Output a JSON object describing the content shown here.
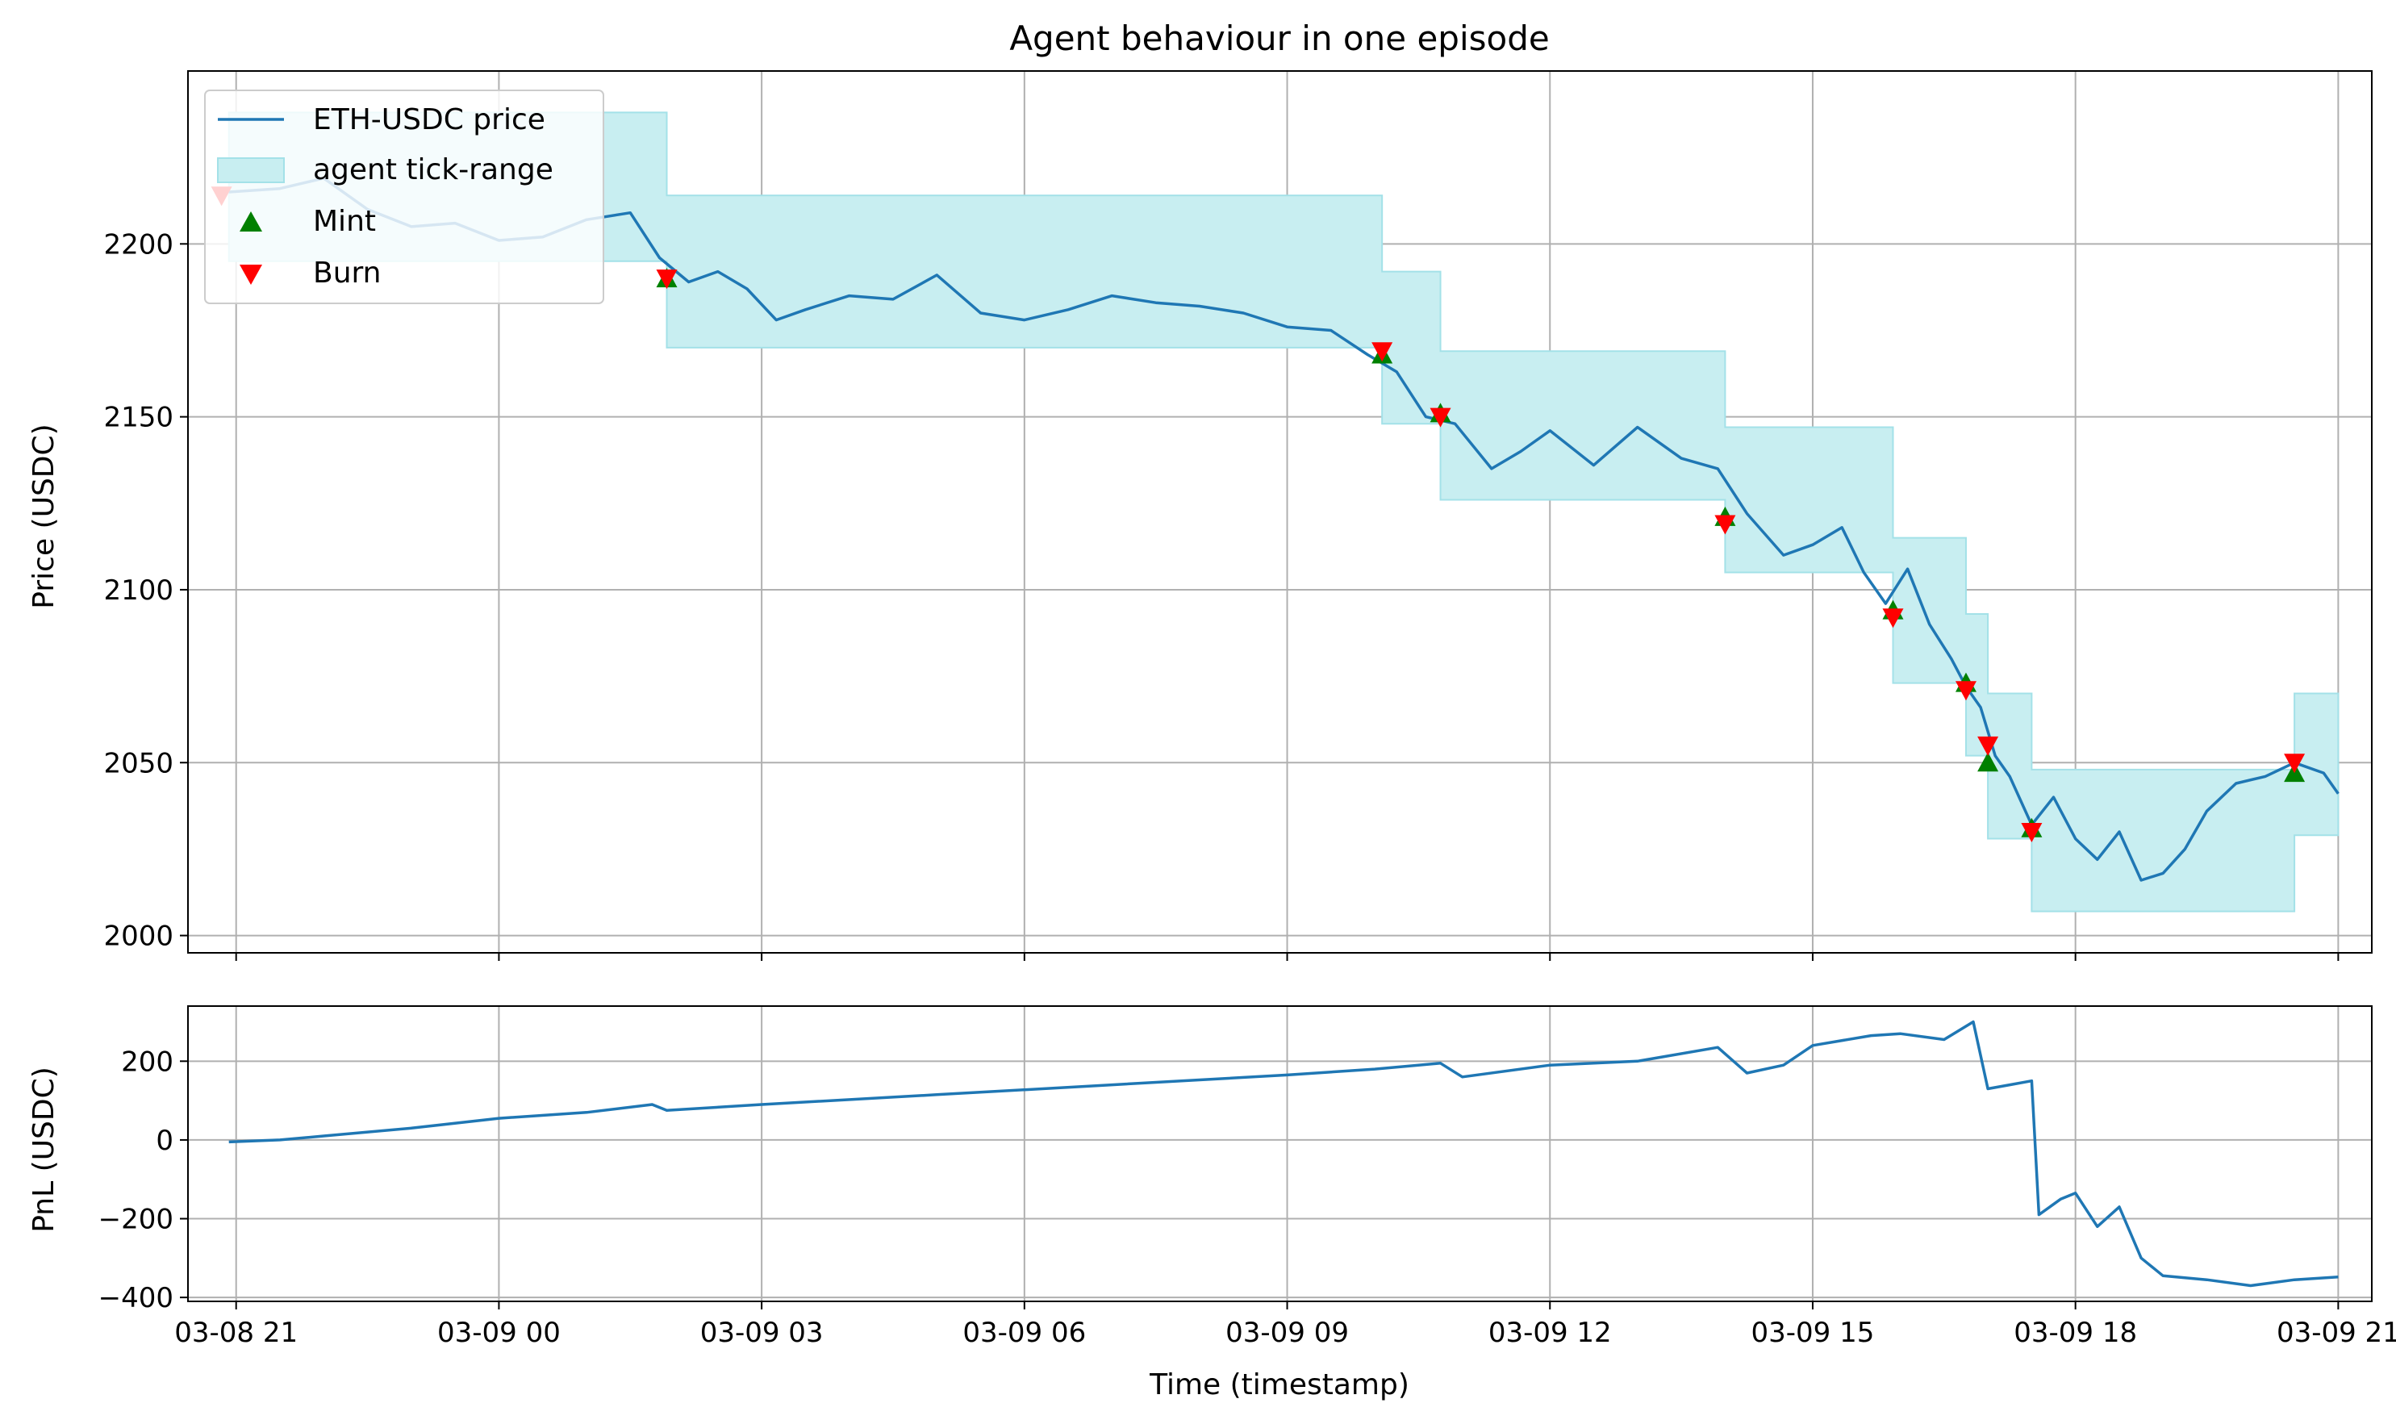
{
  "colors": {
    "price_line": "#1f77b4",
    "pnl_line": "#1f77b4",
    "tick_range_fill": "#c8eef1",
    "tick_range_edge": "#a3e1e8",
    "mint": "#008000",
    "burn": "#ff0000",
    "grid": "#b0b0b0"
  },
  "chart_data": [
    {
      "type": "line",
      "title": "Agent behaviour in one episode",
      "xlabel": "",
      "ylabel": "Price (USDC)",
      "xlim": [
        "2024-03-08 20:27",
        "2024-03-09 21:23"
      ],
      "ylim": [
        1995,
        2250
      ],
      "yticks": [
        2000,
        2050,
        2100,
        2150,
        2200
      ],
      "grid": true,
      "legend_placement": "top-left",
      "legend": [
        "ETH-USDC price",
        "agent tick-range",
        "Mint",
        "Burn"
      ],
      "series": [
        {
          "name": "ETH-USDC price",
          "x": [
            "2024-03-08 20:55",
            "2024-03-08 21:30",
            "2024-03-08 22:00",
            "2024-03-08 22:30",
            "2024-03-08 23:00",
            "2024-03-08 23:30",
            "2024-03-09 00:00",
            "2024-03-09 00:30",
            "2024-03-09 01:00",
            "2024-03-09 01:30",
            "2024-03-09 01:50",
            "2024-03-09 02:10",
            "2024-03-09 02:30",
            "2024-03-09 02:50",
            "2024-03-09 03:10",
            "2024-03-09 03:30",
            "2024-03-09 04:00",
            "2024-03-09 04:30",
            "2024-03-09 05:00",
            "2024-03-09 05:30",
            "2024-03-09 06:00",
            "2024-03-09 06:30",
            "2024-03-09 07:00",
            "2024-03-09 07:30",
            "2024-03-09 08:00",
            "2024-03-09 08:30",
            "2024-03-09 09:00",
            "2024-03-09 09:30",
            "2024-03-09 09:55",
            "2024-03-09 10:15",
            "2024-03-09 10:35",
            "2024-03-09 10:55",
            "2024-03-09 11:20",
            "2024-03-09 11:40",
            "2024-03-09 12:00",
            "2024-03-09 12:30",
            "2024-03-09 13:00",
            "2024-03-09 13:30",
            "2024-03-09 13:55",
            "2024-03-09 14:15",
            "2024-03-09 14:40",
            "2024-03-09 15:00",
            "2024-03-09 15:20",
            "2024-03-09 15:35",
            "2024-03-09 15:50",
            "2024-03-09 16:05",
            "2024-03-09 16:20",
            "2024-03-09 16:35",
            "2024-03-09 16:45",
            "2024-03-09 16:55",
            "2024-03-09 17:05",
            "2024-03-09 17:15",
            "2024-03-09 17:30",
            "2024-03-09 17:45",
            "2024-03-09 18:00",
            "2024-03-09 18:15",
            "2024-03-09 18:30",
            "2024-03-09 18:45",
            "2024-03-09 19:00",
            "2024-03-09 19:15",
            "2024-03-09 19:30",
            "2024-03-09 19:50",
            "2024-03-09 20:10",
            "2024-03-09 20:30",
            "2024-03-09 20:50",
            "2024-03-09 21:00"
          ],
          "values": [
            2215,
            2216,
            2219,
            2210,
            2205,
            2206,
            2201,
            2202,
            2207,
            2209,
            2196,
            2189,
            2192,
            2187,
            2178,
            2181,
            2185,
            2184,
            2191,
            2180,
            2178,
            2181,
            2185,
            2183,
            2182,
            2180,
            2176,
            2175,
            2168,
            2163,
            2150,
            2148,
            2135,
            2140,
            2146,
            2136,
            2147,
            2138,
            2135,
            2122,
            2110,
            2113,
            2118,
            2105,
            2096,
            2106,
            2090,
            2080,
            2072,
            2066,
            2052,
            2046,
            2032,
            2040,
            2028,
            2022,
            2030,
            2016,
            2018,
            2025,
            2036,
            2044,
            2046,
            2050,
            2047,
            2041
          ]
        },
        {
          "name": "agent tick-range",
          "segments": [
            {
              "from": "2024-03-08 20:55",
              "to": "2024-03-09 01:55",
              "low": 2195,
              "high": 2238
            },
            {
              "from": "2024-03-09 01:55",
              "to": "2024-03-09 10:05",
              "low": 2170,
              "high": 2214
            },
            {
              "from": "2024-03-09 10:05",
              "to": "2024-03-09 10:45",
              "low": 2148,
              "high": 2192
            },
            {
              "from": "2024-03-09 10:45",
              "to": "2024-03-09 14:00",
              "low": 2126,
              "high": 2169
            },
            {
              "from": "2024-03-09 14:00",
              "to": "2024-03-09 15:55",
              "low": 2105,
              "high": 2147
            },
            {
              "from": "2024-03-09 15:55",
              "to": "2024-03-09 16:45",
              "low": 2073,
              "high": 2115
            },
            {
              "from": "2024-03-09 16:45",
              "to": "2024-03-09 17:00",
              "low": 2052,
              "high": 2093
            },
            {
              "from": "2024-03-09 17:00",
              "to": "2024-03-09 17:30",
              "low": 2028,
              "high": 2070
            },
            {
              "from": "2024-03-09 17:30",
              "to": "2024-03-09 20:30",
              "low": 2007,
              "high": 2048
            },
            {
              "from": "2024-03-09 20:30",
              "to": "2024-03-09 21:00",
              "low": 2029,
              "high": 2070
            }
          ]
        },
        {
          "name": "Mint",
          "x": [
            "2024-03-09 01:55",
            "2024-03-09 10:05",
            "2024-03-09 10:45",
            "2024-03-09 14:00",
            "2024-03-09 15:55",
            "2024-03-09 16:45",
            "2024-03-09 17:00",
            "2024-03-09 17:30",
            "2024-03-09 20:30"
          ],
          "values": [
            2190,
            2168,
            2151,
            2121,
            2094,
            2073,
            2050,
            2031,
            2047
          ]
        },
        {
          "name": "Burn",
          "x": [
            "2024-03-08 20:50",
            "2024-03-09 01:55",
            "2024-03-09 10:05",
            "2024-03-09 10:45",
            "2024-03-09 14:00",
            "2024-03-09 15:55",
            "2024-03-09 16:45",
            "2024-03-09 17:00",
            "2024-03-09 17:30",
            "2024-03-09 20:30"
          ],
          "values": [
            2214,
            2190,
            2169,
            2150,
            2119,
            2092,
            2071,
            2055,
            2030,
            2050
          ]
        }
      ]
    },
    {
      "type": "line",
      "title": "",
      "xlabel": "Time (timestamp)",
      "ylabel": "PnL (USDC)",
      "xlim": [
        "2024-03-08 20:27",
        "2024-03-09 21:23"
      ],
      "ylim": [
        -410,
        340
      ],
      "yticks": [
        -400,
        -200,
        0,
        200
      ],
      "xticks": [
        "2024-03-08 21:00",
        "2024-03-09 00:00",
        "2024-03-09 03:00",
        "2024-03-09 06:00",
        "2024-03-09 09:00",
        "2024-03-09 12:00",
        "2024-03-09 15:00",
        "2024-03-09 18:00",
        "2024-03-09 21:00"
      ],
      "xtick_labels": [
        "03-08 21",
        "03-09 00",
        "03-09 03",
        "03-09 06",
        "03-09 09",
        "03-09 12",
        "03-09 15",
        "03-09 18",
        "03-09 21"
      ],
      "grid": true,
      "series": [
        {
          "name": "PnL",
          "x": [
            "2024-03-08 20:55",
            "2024-03-08 21:30",
            "2024-03-08 22:00",
            "2024-03-08 23:00",
            "2024-03-09 00:00",
            "2024-03-09 01:00",
            "2024-03-09 01:45",
            "2024-03-09 01:55",
            "2024-03-09 03:00",
            "2024-03-09 05:00",
            "2024-03-09 07:00",
            "2024-03-09 09:00",
            "2024-03-09 10:00",
            "2024-03-09 10:45",
            "2024-03-09 11:00",
            "2024-03-09 12:00",
            "2024-03-09 13:00",
            "2024-03-09 13:55",
            "2024-03-09 14:15",
            "2024-03-09 14:40",
            "2024-03-09 15:00",
            "2024-03-09 15:40",
            "2024-03-09 16:00",
            "2024-03-09 16:30",
            "2024-03-09 16:50",
            "2024-03-09 17:00",
            "2024-03-09 17:15",
            "2024-03-09 17:30",
            "2024-03-09 17:35",
            "2024-03-09 17:50",
            "2024-03-09 18:00",
            "2024-03-09 18:15",
            "2024-03-09 18:30",
            "2024-03-09 18:45",
            "2024-03-09 19:00",
            "2024-03-09 19:30",
            "2024-03-09 20:00",
            "2024-03-09 20:30",
            "2024-03-09 21:00"
          ],
          "values": [
            -5,
            0,
            10,
            30,
            55,
            70,
            90,
            75,
            90,
            115,
            140,
            165,
            180,
            195,
            160,
            190,
            200,
            235,
            170,
            190,
            240,
            265,
            270,
            255,
            300,
            130,
            140,
            150,
            -190,
            -150,
            -135,
            -220,
            -170,
            -300,
            -345,
            -355,
            -370,
            -355,
            -348
          ]
        }
      ]
    }
  ]
}
